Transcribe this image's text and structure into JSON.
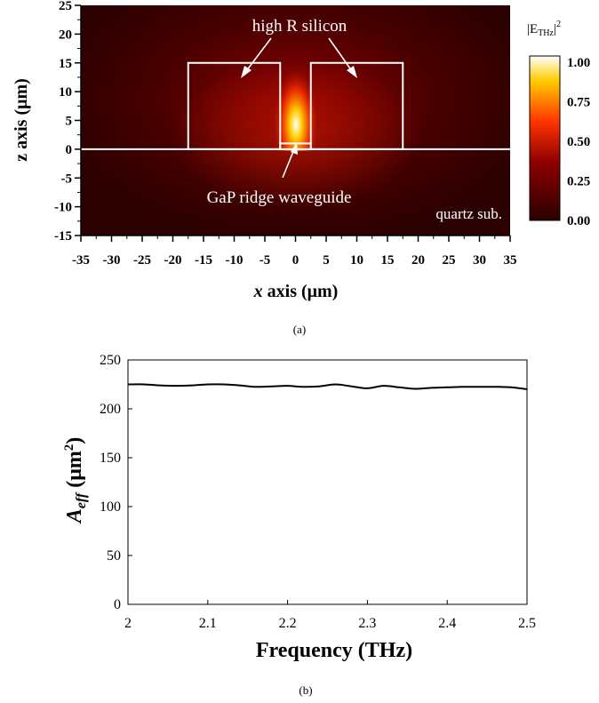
{
  "panel_a": {
    "caption": "(a)",
    "xlabel_var": "x",
    "xlabel_rest": " axis (μm)",
    "ylabel": "z axis (μm)",
    "colorbar_title_base": "|E",
    "colorbar_title_sub": "THz",
    "colorbar_title_tail": "|",
    "colorbar_title_sup": "2",
    "annotation_silicon": "high R silicon",
    "annotation_ridge": "GaP ridge waveguide",
    "annotation_substrate": "quartz sub.",
    "colors": {
      "low": "#2a0000",
      "mid1": "#8c0000",
      "mid2": "#ff3300",
      "high1": "#ffcc00",
      "top": "#ffffff",
      "outline": "#ffffff"
    }
  },
  "panel_b": {
    "caption": "(b)",
    "xlabel": "Frequency (THz)",
    "ylabel_main": "A",
    "ylabel_sub": "eff",
    "ylabel_unit_open": " (μm",
    "ylabel_unit_sup": "2",
    "ylabel_unit_close": ")"
  },
  "chart_data": [
    {
      "type": "heatmap",
      "title": "",
      "xlabel": "x axis (μm)",
      "ylabel": "z axis (μm)",
      "xlim": [
        -35,
        35
      ],
      "ylim": [
        -15,
        25
      ],
      "xticks": [
        -35,
        -30,
        -25,
        -20,
        -15,
        -10,
        -5,
        0,
        5,
        10,
        15,
        20,
        25,
        30,
        35
      ],
      "yticks": [
        -15,
        -10,
        -5,
        0,
        5,
        10,
        15,
        20,
        25
      ],
      "colorbar": {
        "label": "|E_THz|^2",
        "range": [
          0,
          1
        ],
        "ticks": [
          "0.00",
          "0.25",
          "0.50",
          "0.75",
          "1.00"
        ]
      },
      "structures": [
        {
          "label": "high R silicon",
          "x": [
            -17.5,
            -2.5
          ],
          "z": [
            0,
            15
          ]
        },
        {
          "label": "high R silicon",
          "x": [
            2.5,
            17.5
          ],
          "z": [
            0,
            15
          ]
        },
        {
          "label": "GaP ridge waveguide",
          "x": [
            -2.5,
            2.5
          ],
          "z": [
            0,
            1
          ]
        },
        {
          "label": "quartz sub.",
          "z": [
            -15,
            0
          ]
        }
      ]
    },
    {
      "type": "line",
      "title": "",
      "xlabel": "Frequency (THz)",
      "ylabel": "A_eff (μm^2)",
      "xlim": [
        2,
        2.5
      ],
      "ylim": [
        0,
        250
      ],
      "xticks": [
        "2",
        "2.1",
        "2.2",
        "2.3",
        "2.4",
        "2.5"
      ],
      "yticks": [
        "0",
        "50",
        "100",
        "150",
        "200",
        "250"
      ],
      "grid": false,
      "series": [
        {
          "x": [
            2.0,
            2.02,
            2.04,
            2.06,
            2.08,
            2.1,
            2.12,
            2.14,
            2.16,
            2.18,
            2.2,
            2.22,
            2.24,
            2.26,
            2.28,
            2.3,
            2.32,
            2.34,
            2.36,
            2.38,
            2.4,
            2.42,
            2.44,
            2.46,
            2.48,
            2.5
          ],
          "values": [
            225,
            225,
            224,
            223.5,
            224,
            225,
            225,
            224,
            222.5,
            223,
            223.5,
            222.5,
            223,
            225,
            223,
            221,
            223.5,
            222,
            220.5,
            221.5,
            222,
            222.5,
            222.5,
            222.5,
            222,
            220
          ]
        }
      ]
    }
  ]
}
